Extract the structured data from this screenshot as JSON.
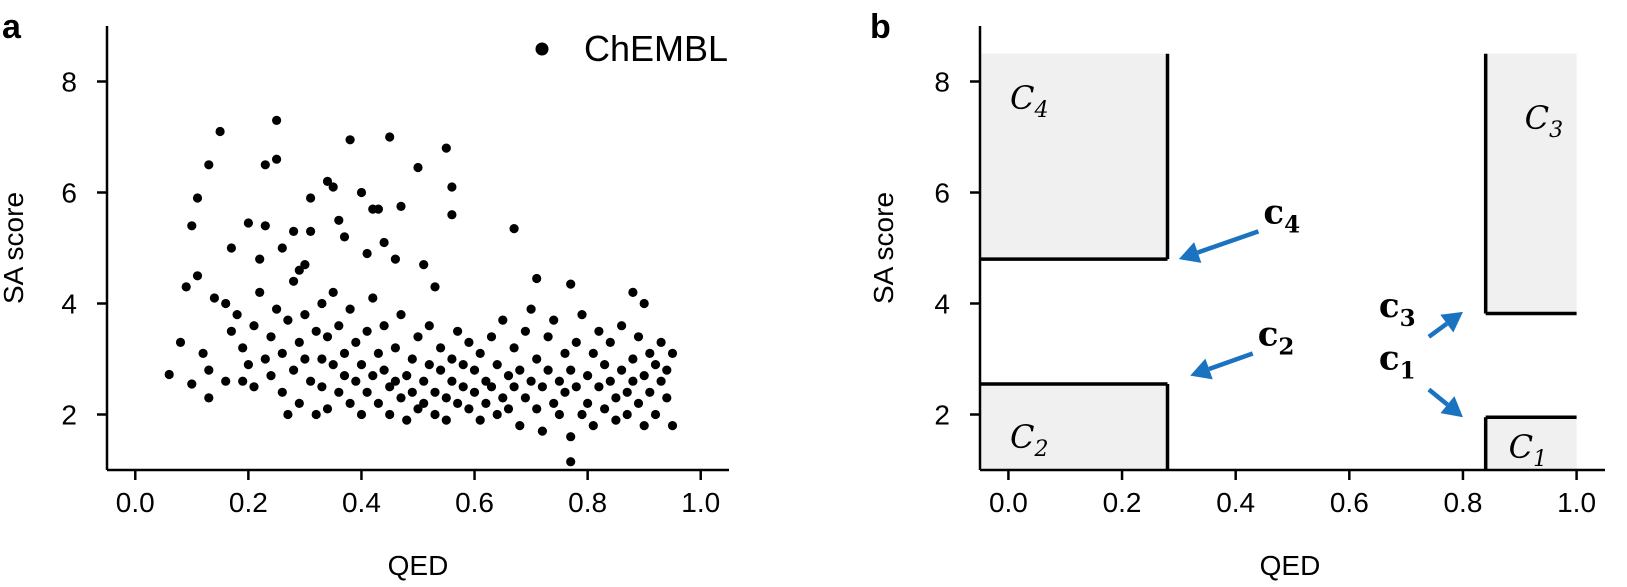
{
  "chart_data": [
    {
      "type": "scatter",
      "panel_label": "a",
      "xlabel": "QED",
      "ylabel": "SA score",
      "xlim": [
        -0.05,
        1.05
      ],
      "ylim": [
        1.0,
        9.0
      ],
      "xticks": [
        0.0,
        0.2,
        0.4,
        0.6,
        0.8,
        1.0
      ],
      "xtick_labels": [
        "0.0",
        "0.2",
        "0.4",
        "0.6",
        "0.8",
        "1.0"
      ],
      "yticks": [
        2,
        4,
        6,
        8
      ],
      "ytick_labels": [
        "2",
        "4",
        "6",
        "8"
      ],
      "legend": {
        "label": "ChEMBL",
        "position": "top-right"
      },
      "marker_color": "#000000",
      "series": [
        {
          "name": "ChEMBL",
          "points": [
            [
              0.06,
              2.72
            ],
            [
              0.08,
              3.3
            ],
            [
              0.09,
              4.3
            ],
            [
              0.1,
              2.55
            ],
            [
              0.1,
              5.4
            ],
            [
              0.11,
              4.5
            ],
            [
              0.11,
              5.9
            ],
            [
              0.12,
              3.1
            ],
            [
              0.13,
              2.3
            ],
            [
              0.13,
              2.8
            ],
            [
              0.13,
              6.5
            ],
            [
              0.14,
              4.1
            ],
            [
              0.15,
              7.1
            ],
            [
              0.16,
              2.6
            ],
            [
              0.17,
              5.0
            ],
            [
              0.19,
              2.6
            ],
            [
              0.2,
              5.45
            ],
            [
              0.22,
              4.8
            ],
            [
              0.23,
              5.4
            ],
            [
              0.23,
              6.5
            ],
            [
              0.25,
              6.6
            ],
            [
              0.25,
              7.3
            ],
            [
              0.26,
              5.0
            ],
            [
              0.27,
              2.0
            ],
            [
              0.28,
              5.3
            ],
            [
              0.29,
              4.6
            ],
            [
              0.3,
              4.7
            ],
            [
              0.31,
              5.9
            ],
            [
              0.31,
              5.3
            ],
            [
              0.33,
              4.0
            ],
            [
              0.34,
              6.2
            ],
            [
              0.35,
              6.1
            ],
            [
              0.36,
              5.5
            ],
            [
              0.37,
              5.2
            ],
            [
              0.38,
              6.95
            ],
            [
              0.4,
              6.0
            ],
            [
              0.41,
              4.9
            ],
            [
              0.42,
              5.7
            ],
            [
              0.43,
              5.7
            ],
            [
              0.44,
              5.1
            ],
            [
              0.45,
              7.0
            ],
            [
              0.46,
              4.8
            ],
            [
              0.47,
              5.75
            ],
            [
              0.5,
              6.45
            ],
            [
              0.51,
              4.7
            ],
            [
              0.53,
              4.3
            ],
            [
              0.55,
              6.8
            ],
            [
              0.56,
              6.1
            ],
            [
              0.56,
              5.6
            ],
            [
              0.67,
              5.35
            ],
            [
              0.71,
              4.45
            ],
            [
              0.77,
              4.35
            ],
            [
              0.77,
              1.15
            ],
            [
              0.88,
              4.2
            ],
            [
              0.9,
              4.0
            ],
            [
              0.95,
              3.1
            ],
            [
              0.95,
              1.8
            ],
            [
              0.16,
              4.0
            ],
            [
              0.17,
              3.5
            ],
            [
              0.18,
              3.8
            ],
            [
              0.19,
              3.2
            ],
            [
              0.2,
              2.9
            ],
            [
              0.21,
              3.6
            ],
            [
              0.21,
              2.5
            ],
            [
              0.22,
              4.2
            ],
            [
              0.23,
              3.0
            ],
            [
              0.24,
              3.4
            ],
            [
              0.24,
              2.7
            ],
            [
              0.25,
              3.9
            ],
            [
              0.26,
              3.1
            ],
            [
              0.26,
              2.4
            ],
            [
              0.27,
              3.7
            ],
            [
              0.28,
              2.8
            ],
            [
              0.28,
              4.4
            ],
            [
              0.29,
              3.3
            ],
            [
              0.29,
              2.2
            ],
            [
              0.3,
              3.0
            ],
            [
              0.3,
              3.8
            ],
            [
              0.31,
              2.6
            ],
            [
              0.32,
              3.5
            ],
            [
              0.32,
              2.0
            ],
            [
              0.33,
              3.0
            ],
            [
              0.33,
              2.5
            ],
            [
              0.34,
              3.4
            ],
            [
              0.34,
              2.1
            ],
            [
              0.35,
              2.9
            ],
            [
              0.35,
              4.2
            ],
            [
              0.36,
              2.4
            ],
            [
              0.36,
              3.6
            ],
            [
              0.37,
              2.7
            ],
            [
              0.37,
              3.1
            ],
            [
              0.38,
              2.2
            ],
            [
              0.38,
              3.9
            ],
            [
              0.39,
              2.6
            ],
            [
              0.39,
              3.3
            ],
            [
              0.4,
              2.0
            ],
            [
              0.4,
              2.9
            ],
            [
              0.41,
              3.5
            ],
            [
              0.41,
              2.4
            ],
            [
              0.42,
              2.7
            ],
            [
              0.42,
              4.1
            ],
            [
              0.43,
              3.1
            ],
            [
              0.43,
              2.2
            ],
            [
              0.44,
              2.8
            ],
            [
              0.44,
              3.6
            ],
            [
              0.45,
              2.5
            ],
            [
              0.45,
              2.0
            ],
            [
              0.46,
              3.2
            ],
            [
              0.46,
              2.6
            ],
            [
              0.47,
              2.3
            ],
            [
              0.47,
              3.8
            ],
            [
              0.48,
              2.7
            ],
            [
              0.48,
              1.9
            ],
            [
              0.49,
              3.0
            ],
            [
              0.49,
              2.4
            ],
            [
              0.5,
              2.1
            ],
            [
              0.5,
              3.4
            ],
            [
              0.51,
              2.6
            ],
            [
              0.51,
              2.2
            ],
            [
              0.52,
              2.9
            ],
            [
              0.52,
              3.6
            ],
            [
              0.53,
              2.4
            ],
            [
              0.53,
              2.0
            ],
            [
              0.54,
              2.8
            ],
            [
              0.54,
              3.2
            ],
            [
              0.55,
              2.3
            ],
            [
              0.55,
              1.9
            ],
            [
              0.56,
              2.6
            ],
            [
              0.56,
              3.0
            ],
            [
              0.57,
              2.2
            ],
            [
              0.57,
              3.5
            ],
            [
              0.58,
              2.5
            ],
            [
              0.58,
              2.9
            ],
            [
              0.59,
              2.1
            ],
            [
              0.59,
              3.3
            ],
            [
              0.6,
              2.4
            ],
            [
              0.6,
              2.8
            ],
            [
              0.61,
              1.9
            ],
            [
              0.61,
              3.1
            ],
            [
              0.62,
              2.6
            ],
            [
              0.62,
              2.2
            ],
            [
              0.63,
              3.4
            ],
            [
              0.63,
              2.5
            ],
            [
              0.64,
              2.0
            ],
            [
              0.64,
              2.9
            ],
            [
              0.65,
              2.3
            ],
            [
              0.65,
              3.7
            ],
            [
              0.66,
              2.7
            ],
            [
              0.66,
              2.1
            ],
            [
              0.67,
              3.2
            ],
            [
              0.67,
              2.5
            ],
            [
              0.68,
              1.8
            ],
            [
              0.68,
              2.8
            ],
            [
              0.69,
              3.5
            ],
            [
              0.69,
              2.3
            ],
            [
              0.7,
              2.6
            ],
            [
              0.7,
              3.9
            ],
            [
              0.71,
              2.1
            ],
            [
              0.71,
              3.0
            ],
            [
              0.72,
              2.5
            ],
            [
              0.72,
              1.7
            ],
            [
              0.73,
              2.8
            ],
            [
              0.73,
              3.4
            ],
            [
              0.74,
              2.2
            ],
            [
              0.74,
              3.7
            ],
            [
              0.75,
              2.6
            ],
            [
              0.75,
              2.0
            ],
            [
              0.76,
              3.1
            ],
            [
              0.76,
              2.4
            ],
            [
              0.77,
              2.8
            ],
            [
              0.77,
              1.6
            ],
            [
              0.78,
              3.3
            ],
            [
              0.78,
              2.5
            ],
            [
              0.79,
              2.0
            ],
            [
              0.79,
              3.8
            ],
            [
              0.8,
              2.7
            ],
            [
              0.8,
              2.2
            ],
            [
              0.81,
              3.1
            ],
            [
              0.81,
              1.8
            ],
            [
              0.82,
              2.5
            ],
            [
              0.82,
              3.5
            ],
            [
              0.83,
              2.9
            ],
            [
              0.83,
              2.1
            ],
            [
              0.84,
              2.6
            ],
            [
              0.84,
              3.3
            ],
            [
              0.85,
              2.3
            ],
            [
              0.85,
              1.9
            ],
            [
              0.86,
              2.8
            ],
            [
              0.86,
              3.6
            ],
            [
              0.87,
              2.4
            ],
            [
              0.87,
              2.0
            ],
            [
              0.88,
              3.0
            ],
            [
              0.88,
              2.6
            ],
            [
              0.89,
              2.2
            ],
            [
              0.89,
              3.4
            ],
            [
              0.9,
              2.7
            ],
            [
              0.9,
              1.8
            ],
            [
              0.91,
              3.1
            ],
            [
              0.91,
              2.4
            ],
            [
              0.92,
              2.0
            ],
            [
              0.92,
              2.9
            ],
            [
              0.93,
              2.6
            ],
            [
              0.93,
              3.3
            ],
            [
              0.94,
              2.3
            ],
            [
              0.94,
              2.8
            ]
          ]
        }
      ]
    },
    {
      "type": "scatter",
      "panel_label": "b",
      "xlabel": "QED",
      "ylabel": "SA score",
      "xlim": [
        -0.05,
        1.05
      ],
      "ylim": [
        1.0,
        9.0
      ],
      "xticks": [
        0.0,
        0.2,
        0.4,
        0.6,
        0.8,
        1.0
      ],
      "xtick_labels": [
        "0.0",
        "0.2",
        "0.4",
        "0.6",
        "0.8",
        "1.0"
      ],
      "yticks": [
        2,
        4,
        6,
        8
      ],
      "ytick_labels": [
        "2",
        "4",
        "6",
        "8"
      ],
      "region_fill": "#f0f0f0",
      "arrow_color": "#1a73c0",
      "regions": [
        {
          "label_main": "C",
          "label_sub": "4",
          "x": [
            -0.05,
            0.28
          ],
          "y": [
            4.8,
            8.5
          ]
        },
        {
          "label_main": "C",
          "label_sub": "3",
          "x": [
            0.84,
            1.0
          ],
          "y": [
            3.82,
            8.5
          ]
        },
        {
          "label_main": "C",
          "label_sub": "2",
          "x": [
            -0.05,
            0.28
          ],
          "y": [
            1.0,
            2.55
          ]
        },
        {
          "label_main": "C",
          "label_sub": "1",
          "x": [
            0.84,
            1.0
          ],
          "y": [
            1.0,
            1.95
          ]
        }
      ],
      "arrows": [
        {
          "label_main": "c",
          "label_sub": "4",
          "from": [
            0.44,
            5.3
          ],
          "to": [
            0.3,
            4.8
          ]
        },
        {
          "label_main": "c",
          "label_sub": "3",
          "from": [
            0.74,
            3.4
          ],
          "to": [
            0.8,
            3.85
          ]
        },
        {
          "label_main": "c",
          "label_sub": "2",
          "from": [
            0.43,
            3.1
          ],
          "to": [
            0.32,
            2.7
          ]
        },
        {
          "label_main": "c",
          "label_sub": "1",
          "from": [
            0.74,
            2.45
          ],
          "to": [
            0.8,
            1.95
          ]
        }
      ]
    }
  ]
}
